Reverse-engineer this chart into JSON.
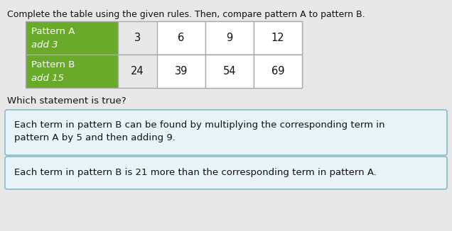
{
  "title": "Complete the table using the given rules. Then, compare pattern A to pattern B.",
  "pattern_a_label1": "Pattern A",
  "pattern_a_label2": "add 3",
  "pattern_b_label1": "Pattern B",
  "pattern_b_label2": "add 15",
  "pattern_a_values": [
    "3",
    "6",
    "9",
    "12"
  ],
  "pattern_b_values": [
    "24",
    "39",
    "54",
    "69"
  ],
  "question": "Which statement is true?",
  "statement1_line1": "Each term in pattern B can be found by multiplying the corresponding term in",
  "statement1_line2": "pattern A by 5 and then adding 9.",
  "statement2": "Each term in pattern B is 21 more than the corresponding term in pattern A.",
  "green_color": "#6aaa2a",
  "white": "#ffffff",
  "cell_border_color": "#aaaaaa",
  "bg_color": "#e8e8e8",
  "box_bg_color": "#e8f4f8",
  "box_border_color": "#88bbcc",
  "text_color": "#111111",
  "title_fontsize": 9.0,
  "label_fontsize": 9.5,
  "value_fontsize": 10.5,
  "question_fontsize": 9.5,
  "statement_fontsize": 9.5
}
